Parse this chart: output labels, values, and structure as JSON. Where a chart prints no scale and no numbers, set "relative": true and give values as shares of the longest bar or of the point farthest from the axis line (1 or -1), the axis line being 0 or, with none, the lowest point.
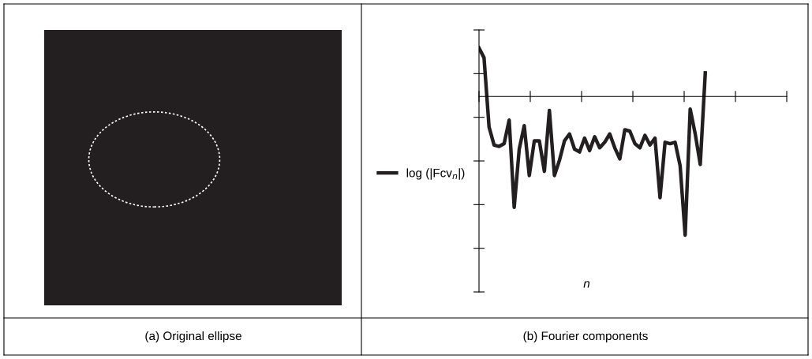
{
  "chart_data": [
    {
      "type": "other",
      "annotations": [
        "(a) Original ellipse"
      ]
    },
    {
      "type": "line",
      "relative": true,
      "xlabel": "n",
      "annotations": [
        "(b) Fourier components"
      ],
      "legend": "left",
      "tick_labels": false,
      "marker": "none",
      "line_style": "solid",
      "categories": [
        null,
        null,
        null,
        null,
        null,
        null,
        null,
        null,
        null,
        null,
        null,
        null,
        null,
        null,
        null,
        null,
        null,
        null,
        null,
        null,
        null,
        null,
        null,
        null,
        null,
        null,
        null,
        null,
        null,
        null,
        null,
        null,
        null,
        null,
        null,
        null,
        null,
        null,
        null,
        null,
        null,
        null,
        null,
        null,
        null,
        null
      ],
      "series": [
        {
          "name": "log (|Fcv$_{n}$|)",
          "color": "#231f20",
          "values": [
            0.35,
            0.28,
            -0.22,
            -0.35,
            -0.36,
            -0.34,
            -0.17,
            -0.8,
            -0.38,
            -0.21,
            -0.57,
            -0.32,
            -0.32,
            -0.54,
            -0.1,
            -0.57,
            -0.46,
            -0.32,
            -0.27,
            -0.38,
            -0.4,
            -0.3,
            -0.39,
            -0.29,
            -0.37,
            -0.33,
            -0.27,
            -0.37,
            -0.45,
            -0.24,
            -0.25,
            -0.34,
            -0.37,
            -0.28,
            -0.35,
            -0.3,
            -0.73,
            -0.33,
            -0.34,
            -0.33,
            -0.5,
            -1,
            -0.09,
            -0.27,
            -0.49,
            0.17
          ]
        }
      ]
    }
  ]
}
